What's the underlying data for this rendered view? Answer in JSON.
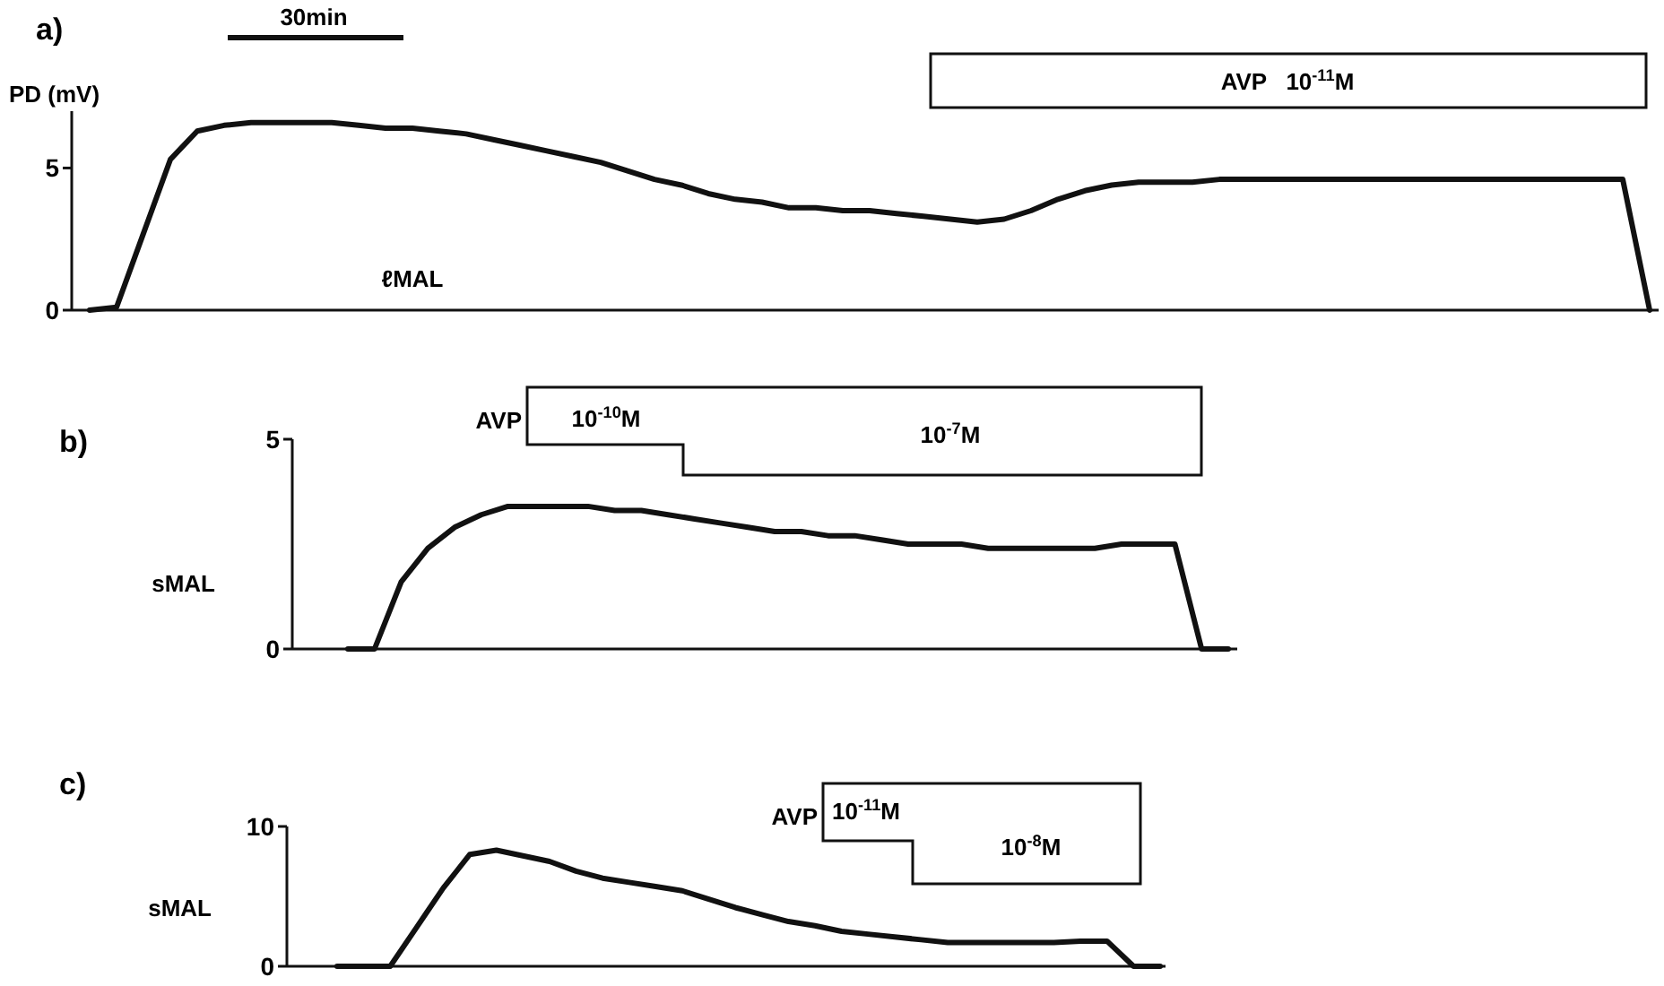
{
  "chart_data": [
    {
      "type": "line",
      "title": "a)",
      "ylabel": "PD (mV)",
      "annotations": [
        "30min",
        "ℓMAL",
        "AVP   10$^{-11}$M"
      ],
      "categories": [
        null,
        null,
        null,
        null,
        null,
        null,
        null,
        null,
        null,
        null,
        null,
        null,
        null,
        null,
        null,
        null,
        null,
        null,
        null,
        null,
        null,
        null,
        null,
        null,
        null,
        null,
        null,
        null,
        null,
        null,
        null,
        null,
        null,
        null,
        null,
        null,
        null,
        null,
        null,
        null,
        null,
        null,
        null,
        null,
        null,
        null,
        null,
        null,
        null,
        null,
        null,
        null,
        null,
        null,
        null,
        null,
        null,
        null,
        null
      ],
      "series": [
        {
          "color": "#111111",
          "values": [
            0,
            0.1,
            2.7,
            5.3,
            6.3,
            6.5,
            6.6,
            6.6,
            6.6,
            6.6,
            6.5,
            6.4,
            6.4,
            6.3,
            6.2,
            6.0,
            5.8,
            5.6,
            5.4,
            5.2,
            4.9,
            4.6,
            4.4,
            4.1,
            3.9,
            3.8,
            3.6,
            3.6,
            3.5,
            3.5,
            3.4,
            3.3,
            3.2,
            3.1,
            3.2,
            3.5,
            3.9,
            4.2,
            4.4,
            4.5,
            4.5,
            4.5,
            4.6,
            4.6,
            4.6,
            4.6,
            4.6,
            4.6,
            4.6,
            4.6,
            4.6,
            4.6,
            4.6,
            4.6,
            4.6,
            4.6,
            4.6,
            4.6,
            0
          ]
        }
      ],
      "ylim": [
        0,
        7
      ],
      "yticks": [
        0,
        5
      ],
      "tick_labels": "y"
    },
    {
      "type": "line",
      "title": "b)",
      "ylabel": "sMAL",
      "annotations": [
        "AVP",
        "10$^{-10}$M",
        "10$^{-7}$M"
      ],
      "categories": [
        null,
        null,
        null,
        null,
        null,
        null,
        null,
        null,
        null,
        null,
        null,
        null,
        null,
        null,
        null,
        null,
        null,
        null,
        null,
        null,
        null,
        null,
        null,
        null,
        null,
        null,
        null,
        null,
        null,
        null,
        null,
        null,
        null,
        null
      ],
      "series": [
        {
          "color": "#111111",
          "values": [
            0,
            0,
            1.6,
            2.4,
            2.9,
            3.2,
            3.4,
            3.4,
            3.4,
            3.4,
            3.3,
            3.3,
            3.2,
            3.1,
            3.0,
            2.9,
            2.8,
            2.8,
            2.7,
            2.7,
            2.6,
            2.5,
            2.5,
            2.5,
            2.4,
            2.4,
            2.4,
            2.4,
            2.4,
            2.5,
            2.5,
            2.5,
            0,
            0
          ]
        }
      ],
      "ylim": [
        0,
        5
      ],
      "yticks": [
        0,
        5
      ],
      "tick_labels": "y"
    },
    {
      "type": "line",
      "title": "c)",
      "ylabel": "sMAL",
      "annotations": [
        "AVP",
        "10$^{-11}$M",
        "10$^{-8}$M"
      ],
      "categories": [
        null,
        null,
        null,
        null,
        null,
        null,
        null,
        null,
        null,
        null,
        null,
        null,
        null,
        null,
        null,
        null,
        null,
        null,
        null,
        null,
        null,
        null,
        null,
        null,
        null,
        null,
        null,
        null,
        null,
        null,
        null,
        null
      ],
      "series": [
        {
          "color": "#111111",
          "values": [
            0,
            0,
            0,
            2.8,
            5.6,
            8.0,
            8.3,
            7.9,
            7.5,
            6.8,
            6.3,
            6.0,
            5.7,
            5.4,
            4.8,
            4.2,
            3.7,
            3.2,
            2.9,
            2.5,
            2.3,
            2.1,
            1.9,
            1.7,
            1.7,
            1.7,
            1.7,
            1.7,
            1.8,
            1.8,
            0,
            0
          ]
        }
      ],
      "ylim": [
        0,
        10
      ],
      "yticks": [
        0,
        10
      ],
      "tick_labels": "y"
    }
  ]
}
